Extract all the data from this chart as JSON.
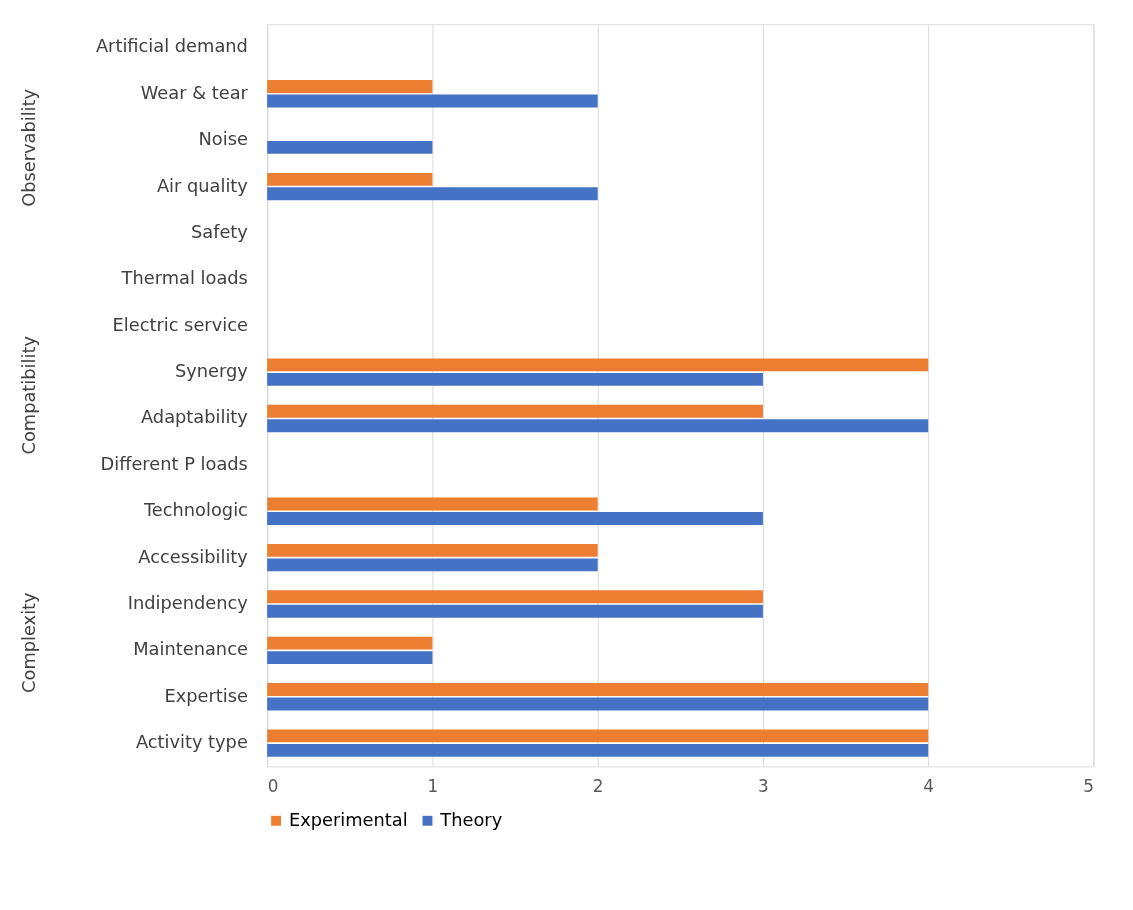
{
  "chart_data": {
    "type": "bar",
    "orientation": "horizontal",
    "categories": [
      "Artificial demand",
      "Wear & tear",
      "Noise",
      "Air quality",
      "Safety",
      "Thermal loads",
      "Electric service",
      "Synergy",
      "Adaptability",
      "Different P loads",
      "Technologic",
      "Accessibility",
      "Indipendency",
      "Maintenance",
      "Expertise",
      "Activity type"
    ],
    "series": [
      {
        "name": "Experimental",
        "color": "#ed7d31",
        "values": [
          0,
          1,
          0,
          1,
          0,
          0,
          0,
          4,
          3,
          0,
          2,
          2,
          3,
          1,
          4,
          4
        ]
      },
      {
        "name": "Theory",
        "color": "#4472c4",
        "values": [
          0,
          2,
          1,
          2,
          0,
          0,
          0,
          3,
          4,
          0,
          3,
          2,
          3,
          1,
          4,
          4
        ]
      }
    ],
    "xlim": [
      0,
      5
    ],
    "xticks": [
      0,
      1,
      2,
      3,
      4,
      5
    ],
    "grid": "x",
    "legend": "bottom",
    "annotations": [
      "Observability",
      "Compatibility",
      "Complexity"
    ]
  }
}
